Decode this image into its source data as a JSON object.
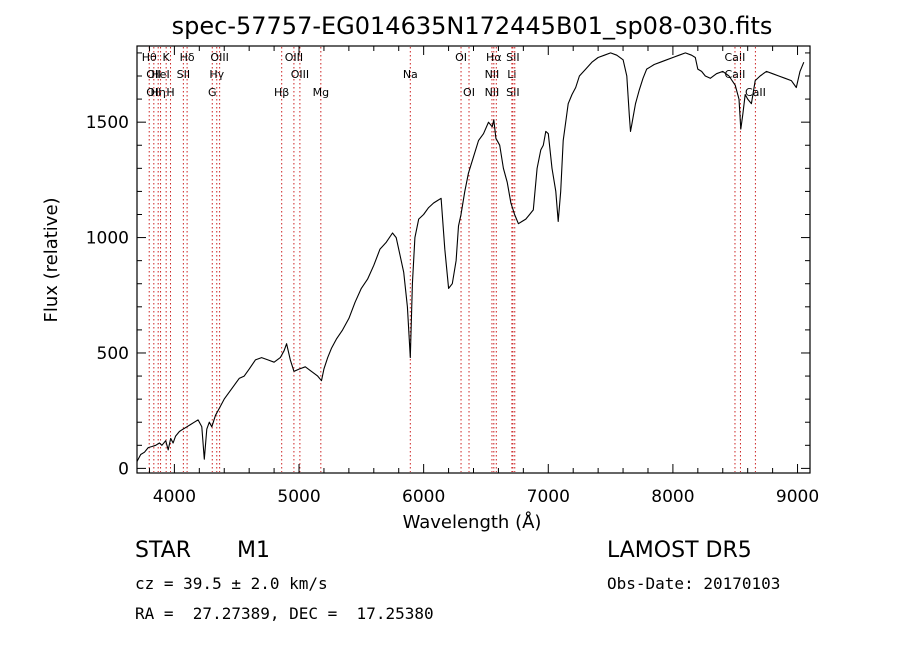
{
  "chart_data": {
    "type": "line",
    "title": "spec-57757-EG014635N172445B01_sp08-030.fits",
    "xlabel": "Wavelength (Å)",
    "ylabel": "Flux (relative)",
    "xlim": [
      3700,
      9100
    ],
    "ylim": [
      -20,
      1830
    ],
    "xticks": [
      {
        "value": 4000,
        "label": "4000"
      },
      {
        "value": 5000,
        "label": "5000"
      },
      {
        "value": 6000,
        "label": "6000"
      },
      {
        "value": 7000,
        "label": "7000"
      },
      {
        "value": 8000,
        "label": "8000"
      },
      {
        "value": 9000,
        "label": "9000"
      }
    ],
    "yticks": [
      {
        "value": 0,
        "label": "0"
      },
      {
        "value": 500,
        "label": "500"
      },
      {
        "value": 1000,
        "label": "1000"
      },
      {
        "value": 1500,
        "label": "1500"
      }
    ],
    "grid": false,
    "line_color": "#000000",
    "marker_color": "#cc2222",
    "series": [
      {
        "x": [
          3700,
          3730,
          3760,
          3790,
          3820,
          3850,
          3880,
          3900,
          3930,
          3950,
          3970,
          3990,
          4010,
          4040,
          4070,
          4100,
          4130,
          4160,
          4190,
          4220,
          4240,
          4260,
          4280,
          4300,
          4330,
          4360,
          4400,
          4440,
          4480,
          4520,
          4560,
          4600,
          4650,
          4700,
          4750,
          4800,
          4850,
          4880,
          4900,
          4930,
          4960,
          5000,
          5050,
          5100,
          5150,
          5180,
          5200,
          5230,
          5260,
          5300,
          5350,
          5400,
          5450,
          5500,
          5550,
          5600,
          5650,
          5700,
          5750,
          5780,
          5800,
          5840,
          5870,
          5893,
          5910,
          5930,
          5960,
          6000,
          6040,
          6080,
          6110,
          6140,
          6170,
          6200,
          6230,
          6260,
          6280,
          6300,
          6330,
          6360,
          6400,
          6440,
          6480,
          6520,
          6550,
          6563,
          6580,
          6610,
          6640,
          6670,
          6700,
          6730,
          6760,
          6790,
          6820,
          6850,
          6880,
          6910,
          6940,
          6960,
          6980,
          7000,
          7030,
          7060,
          7080,
          7100,
          7120,
          7140,
          7160,
          7190,
          7220,
          7250,
          7300,
          7350,
          7400,
          7450,
          7500,
          7550,
          7600,
          7630,
          7650,
          7660,
          7670,
          7680,
          7700,
          7730,
          7760,
          7790,
          7820,
          7850,
          7900,
          7950,
          8000,
          8050,
          8100,
          8150,
          8180,
          8200,
          8230,
          8260,
          8300,
          8350,
          8400,
          8450,
          8500,
          8530,
          8545,
          8560,
          8580,
          8600,
          8630,
          8660,
          8700,
          8750,
          8800,
          8850,
          8900,
          8950,
          8990,
          9020,
          9050
        ],
        "y": [
          30,
          60,
          70,
          90,
          95,
          100,
          110,
          100,
          120,
          80,
          130,
          110,
          140,
          160,
          170,
          180,
          190,
          200,
          210,
          180,
          40,
          170,
          200,
          180,
          230,
          260,
          300,
          330,
          360,
          390,
          400,
          430,
          470,
          480,
          470,
          460,
          480,
          510,
          540,
          470,
          420,
          430,
          440,
          420,
          400,
          380,
          430,
          480,
          520,
          560,
          600,
          650,
          720,
          780,
          820,
          880,
          950,
          980,
          1020,
          1000,
          950,
          850,
          700,
          480,
          800,
          1000,
          1080,
          1100,
          1130,
          1150,
          1160,
          1170,
          950,
          780,
          800,
          900,
          1050,
          1100,
          1200,
          1280,
          1350,
          1420,
          1450,
          1500,
          1480,
          1510,
          1430,
          1400,
          1300,
          1240,
          1150,
          1100,
          1060,
          1070,
          1080,
          1100,
          1120,
          1300,
          1380,
          1400,
          1460,
          1450,
          1300,
          1200,
          1070,
          1200,
          1420,
          1500,
          1580,
          1620,
          1650,
          1700,
          1730,
          1760,
          1780,
          1790,
          1800,
          1790,
          1770,
          1700,
          1530,
          1460,
          1490,
          1520,
          1580,
          1640,
          1690,
          1730,
          1740,
          1750,
          1760,
          1770,
          1780,
          1790,
          1800,
          1790,
          1780,
          1730,
          1720,
          1700,
          1690,
          1710,
          1720,
          1700,
          1660,
          1600,
          1470,
          1530,
          1620,
          1600,
          1580,
          1680,
          1700,
          1720,
          1710,
          1700,
          1690,
          1680,
          1650,
          1720,
          1760
        ]
      }
    ],
    "line_markers": [
      {
        "x": 3798,
        "labels": [
          "Hθ",
          "",
          ""
        ]
      },
      {
        "x": 3835,
        "labels": [
          "",
          "OII",
          "OII"
        ]
      },
      {
        "x": 3870,
        "labels": [
          "",
          "",
          "Hη"
        ]
      },
      {
        "x": 3889,
        "labels": [
          "",
          "HeI",
          ""
        ]
      },
      {
        "x": 3934,
        "labels": [
          "K",
          "",
          ""
        ]
      },
      {
        "x": 3969,
        "labels": [
          "",
          "",
          "H"
        ]
      },
      {
        "x": 4072,
        "labels": [
          "",
          "SII",
          ""
        ]
      },
      {
        "x": 4102,
        "labels": [
          "Hδ",
          "",
          ""
        ]
      },
      {
        "x": 4304,
        "labels": [
          "",
          "",
          "G"
        ]
      },
      {
        "x": 4340,
        "labels": [
          "",
          "Hγ",
          ""
        ]
      },
      {
        "x": 4363,
        "labels": [
          "OIII",
          "",
          ""
        ]
      },
      {
        "x": 4861,
        "labels": [
          "",
          "",
          "Hβ"
        ]
      },
      {
        "x": 4959,
        "labels": [
          "OIII",
          "",
          ""
        ]
      },
      {
        "x": 5007,
        "labels": [
          "",
          "OIII",
          ""
        ]
      },
      {
        "x": 5175,
        "labels": [
          "",
          "",
          "Mg"
        ]
      },
      {
        "x": 5893,
        "labels": [
          "",
          "Na",
          ""
        ]
      },
      {
        "x": 6300,
        "labels": [
          "OI",
          "",
          ""
        ]
      },
      {
        "x": 6364,
        "labels": [
          "",
          "",
          "OI"
        ]
      },
      {
        "x": 6548,
        "labels": [
          "",
          "NII",
          "NII"
        ]
      },
      {
        "x": 6563,
        "labels": [
          "Hα",
          "",
          ""
        ]
      },
      {
        "x": 6583,
        "labels": [
          "",
          "",
          ""
        ]
      },
      {
        "x": 6708,
        "labels": [
          "",
          "Li",
          ""
        ]
      },
      {
        "x": 6716,
        "labels": [
          "SII",
          "",
          "SII"
        ]
      },
      {
        "x": 6731,
        "labels": [
          "",
          "",
          ""
        ]
      },
      {
        "x": 8498,
        "labels": [
          "CaII",
          "CaII",
          ""
        ]
      },
      {
        "x": 8542,
        "labels": [
          "",
          "",
          ""
        ]
      },
      {
        "x": 8662,
        "labels": [
          "",
          "",
          "CaII"
        ]
      }
    ]
  },
  "info": {
    "object_class": "STAR",
    "subclass": "M1",
    "survey": "LAMOST DR5",
    "cz": "cz = 39.5 ± 2.0 km/s",
    "obs_date": "Obs-Date: 20170103",
    "coords": "RA =  27.27389, DEC =  17.25380"
  }
}
